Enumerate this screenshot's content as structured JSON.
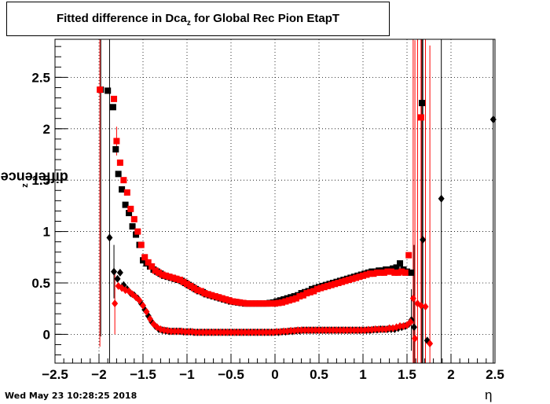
{
  "title": {
    "main": "Fitted difference in Dca",
    "sub": "z",
    "rest": " for Global Rec Pion EtapT"
  },
  "timestamp": "Wed May 23 10:28:25 2018",
  "chart_data": {
    "type": "scatter",
    "title": "Fitted difference in Dca_z for Global Rec Pion EtapT",
    "xlabel": "η",
    "ylabel_main": "difference in Dca",
    "ylabel_sub": "z",
    "xlim": [
      -2.5,
      2.5
    ],
    "ylim": [
      -0.28,
      2.87
    ],
    "xticks": [
      -2.5,
      -2,
      -1.5,
      -1,
      -0.5,
      0,
      0.5,
      1,
      1.5,
      2,
      2.5
    ],
    "xtick_labels": [
      "−2.5",
      "−2",
      "−1.5",
      "−1",
      "−0.5",
      "0",
      "0.5",
      "1",
      "1.5",
      "2",
      "2.5"
    ],
    "yticks": [
      0,
      0.5,
      1,
      1.5,
      2,
      2.5
    ],
    "ytick_labels": [
      "0",
      "0.5",
      "1",
      "1.5",
      "2",
      "2.5"
    ],
    "grid": true,
    "colors": {
      "black": "#000000",
      "red": "#ff0000"
    },
    "series": [
      {
        "marker": "square",
        "color": "#000000",
        "x": [
          -1.98,
          -1.9,
          -1.84,
          -1.81,
          -1.78,
          -1.74,
          -1.7,
          -1.66,
          -1.62,
          -1.58,
          -1.54,
          -1.5,
          -1.46,
          -1.42,
          -1.38,
          -1.34,
          -1.3,
          -1.26,
          -1.22,
          -1.18,
          -1.14,
          -1.1,
          -1.06,
          -1.02,
          -0.98,
          -0.94,
          -0.9,
          -0.86,
          -0.82,
          -0.78,
          -0.74,
          -0.7,
          -0.66,
          -0.62,
          -0.58,
          -0.54,
          -0.5,
          -0.46,
          -0.42,
          -0.38,
          -0.34,
          -0.3,
          -0.26,
          -0.22,
          -0.18,
          -0.14,
          -0.1,
          -0.06,
          -0.02,
          0.02,
          0.06,
          0.1,
          0.14,
          0.18,
          0.22,
          0.26,
          0.3,
          0.34,
          0.38,
          0.42,
          0.46,
          0.5,
          0.54,
          0.58,
          0.62,
          0.66,
          0.7,
          0.74,
          0.78,
          0.82,
          0.86,
          0.9,
          0.94,
          0.98,
          1.02,
          1.06,
          1.1,
          1.14,
          1.18,
          1.22,
          1.26,
          1.3,
          1.34,
          1.38,
          1.42,
          1.46,
          1.5,
          1.54,
          1.67
        ],
        "y": [
          2.38,
          2.37,
          2.21,
          1.8,
          1.56,
          1.41,
          1.26,
          1.18,
          1.05,
          0.97,
          0.87,
          0.72,
          0.69,
          0.66,
          0.63,
          0.61,
          0.59,
          0.57,
          0.56,
          0.55,
          0.54,
          0.53,
          0.52,
          0.5,
          0.48,
          0.46,
          0.44,
          0.42,
          0.41,
          0.39,
          0.38,
          0.37,
          0.36,
          0.35,
          0.34,
          0.33,
          0.32,
          0.315,
          0.31,
          0.305,
          0.3,
          0.3,
          0.3,
          0.3,
          0.3,
          0.3,
          0.3,
          0.305,
          0.31,
          0.32,
          0.33,
          0.34,
          0.35,
          0.36,
          0.37,
          0.38,
          0.4,
          0.41,
          0.42,
          0.44,
          0.45,
          0.46,
          0.47,
          0.48,
          0.49,
          0.5,
          0.51,
          0.52,
          0.53,
          0.54,
          0.55,
          0.56,
          0.57,
          0.58,
          0.59,
          0.6,
          0.61,
          0.61,
          0.62,
          0.62,
          0.63,
          0.63,
          0.64,
          0.65,
          0.69,
          0.63,
          0.61,
          0.6,
          2.25
        ],
        "err": [
          2.4,
          0,
          0,
          0,
          0,
          0,
          0,
          0,
          0,
          0,
          0,
          0,
          0,
          0,
          0,
          0,
          0,
          0,
          0,
          0,
          0,
          0,
          0,
          0,
          0,
          0,
          0,
          0,
          0,
          0,
          0,
          0,
          0,
          0,
          0,
          0,
          0,
          0,
          0,
          0,
          0,
          0,
          0,
          0,
          0,
          0,
          0,
          0,
          0,
          0,
          0,
          0,
          0,
          0,
          0,
          0,
          0,
          0,
          0,
          0,
          0,
          0,
          0,
          0,
          0,
          0,
          0,
          0,
          0,
          0,
          0,
          0,
          0,
          0,
          0,
          0,
          0,
          0,
          0,
          0,
          0,
          0,
          0,
          0,
          0,
          0,
          0,
          0,
          2.6
        ]
      },
      {
        "marker": "square",
        "color": "#ff0000",
        "x": [
          -1.99,
          -1.83,
          -1.8,
          -1.76,
          -1.72,
          -1.68,
          -1.64,
          -1.6,
          -1.56,
          -1.52,
          -1.48,
          -1.44,
          -1.4,
          -1.36,
          -1.32,
          -1.28,
          -1.24,
          -1.2,
          -1.16,
          -1.12,
          -1.08,
          -1.04,
          -1.0,
          -0.96,
          -0.92,
          -0.88,
          -0.84,
          -0.8,
          -0.76,
          -0.72,
          -0.68,
          -0.64,
          -0.6,
          -0.56,
          -0.52,
          -0.48,
          -0.44,
          -0.4,
          -0.36,
          -0.32,
          -0.28,
          -0.24,
          -0.2,
          -0.16,
          -0.12,
          -0.08,
          -0.04,
          0.0,
          0.04,
          0.08,
          0.12,
          0.16,
          0.2,
          0.24,
          0.28,
          0.32,
          0.36,
          0.4,
          0.44,
          0.48,
          0.52,
          0.56,
          0.6,
          0.64,
          0.68,
          0.72,
          0.76,
          0.8,
          0.84,
          0.88,
          0.92,
          0.96,
          1.0,
          1.04,
          1.08,
          1.12,
          1.16,
          1.2,
          1.24,
          1.28,
          1.32,
          1.36,
          1.4,
          1.44,
          1.48,
          1.52,
          1.66
        ],
        "y": [
          2.38,
          2.29,
          1.88,
          1.67,
          1.5,
          1.38,
          1.22,
          1.12,
          1.0,
          0.87,
          0.75,
          0.7,
          0.66,
          0.62,
          0.6,
          0.58,
          0.57,
          0.56,
          0.55,
          0.54,
          0.53,
          0.51,
          0.49,
          0.47,
          0.45,
          0.43,
          0.42,
          0.4,
          0.39,
          0.38,
          0.37,
          0.36,
          0.35,
          0.34,
          0.33,
          0.32,
          0.315,
          0.31,
          0.305,
          0.3,
          0.3,
          0.3,
          0.3,
          0.3,
          0.3,
          0.3,
          0.3,
          0.3,
          0.305,
          0.31,
          0.32,
          0.33,
          0.34,
          0.35,
          0.37,
          0.38,
          0.4,
          0.41,
          0.42,
          0.44,
          0.45,
          0.46,
          0.47,
          0.48,
          0.49,
          0.5,
          0.51,
          0.52,
          0.53,
          0.54,
          0.55,
          0.56,
          0.57,
          0.58,
          0.59,
          0.59,
          0.6,
          0.6,
          0.6,
          0.61,
          0.61,
          0.6,
          0.6,
          0.61,
          0.6,
          0.77,
          2.11
        ],
        "err": [
          2.5,
          0,
          0.14,
          0,
          0,
          0,
          0,
          0,
          0,
          0,
          0,
          0,
          0,
          0,
          0,
          0,
          0,
          0,
          0,
          0,
          0,
          0,
          0,
          0,
          0,
          0,
          0,
          0,
          0,
          0,
          0,
          0,
          0,
          0,
          0,
          0,
          0,
          0,
          0,
          0,
          0,
          0,
          0,
          0,
          0,
          0,
          0,
          0,
          0,
          0,
          0,
          0,
          0,
          0,
          0,
          0,
          0,
          0,
          0,
          0,
          0,
          0,
          0,
          0,
          0,
          0,
          0,
          0,
          0,
          0,
          0,
          0,
          0,
          0,
          0,
          0,
          0,
          0,
          0,
          0,
          0,
          0,
          0,
          0,
          0,
          0,
          2.4
        ]
      },
      {
        "marker": "diamond",
        "color": "#000000",
        "x": [
          -1.88,
          -1.83,
          -1.79,
          -1.76,
          -1.72,
          -1.68,
          -1.64,
          -1.6,
          -1.56,
          -1.52,
          -1.48,
          -1.44,
          -1.4,
          -1.36,
          -1.32,
          -1.28,
          -1.24,
          -1.2,
          -1.16,
          -1.12,
          -1.08,
          -1.04,
          -1.0,
          -0.96,
          -0.92,
          -0.88,
          -0.84,
          -0.8,
          -0.76,
          -0.72,
          -0.68,
          -0.64,
          -0.6,
          -0.56,
          -0.52,
          -0.48,
          -0.44,
          -0.4,
          -0.36,
          -0.32,
          -0.28,
          -0.24,
          -0.2,
          -0.16,
          -0.12,
          -0.08,
          -0.04,
          0.0,
          0.04,
          0.08,
          0.12,
          0.16,
          0.2,
          0.24,
          0.28,
          0.32,
          0.36,
          0.4,
          0.44,
          0.48,
          0.52,
          0.56,
          0.6,
          0.64,
          0.68,
          0.72,
          0.76,
          0.8,
          0.84,
          0.88,
          0.92,
          0.96,
          1.0,
          1.04,
          1.08,
          1.12,
          1.16,
          1.2,
          1.24,
          1.28,
          1.32,
          1.36,
          1.4,
          1.44,
          1.48,
          1.52,
          1.55,
          1.58,
          1.68,
          1.73,
          1.89,
          2.48
        ],
        "y": [
          0.94,
          0.61,
          0.54,
          0.6,
          0.48,
          0.44,
          0.4,
          0.38,
          0.35,
          0.3,
          0.24,
          0.18,
          0.12,
          0.08,
          0.05,
          0.04,
          0.035,
          0.03,
          0.03,
          0.03,
          0.03,
          0.025,
          0.025,
          0.025,
          0.02,
          0.02,
          0.02,
          0.02,
          0.02,
          0.02,
          0.02,
          0.02,
          0.02,
          0.02,
          0.02,
          0.02,
          0.02,
          0.02,
          0.02,
          0.02,
          0.02,
          0.02,
          0.02,
          0.02,
          0.02,
          0.02,
          0.02,
          0.02,
          0.02,
          0.025,
          0.025,
          0.03,
          0.03,
          0.035,
          0.035,
          0.04,
          0.04,
          0.04,
          0.04,
          0.04,
          0.04,
          0.04,
          0.04,
          0.04,
          0.04,
          0.04,
          0.04,
          0.04,
          0.04,
          0.04,
          0.04,
          0.04,
          0.04,
          0.04,
          0.04,
          0.045,
          0.045,
          0.05,
          0.05,
          0.05,
          0.05,
          0.05,
          0.06,
          0.07,
          0.08,
          0.1,
          0.14,
          0.07,
          0.92,
          -0.06,
          1.32,
          2.09
        ],
        "err": [
          2.9,
          0.26,
          0,
          0,
          0,
          0,
          0,
          0,
          0,
          0,
          0,
          0,
          0,
          0,
          0,
          0,
          0,
          0,
          0,
          0,
          0,
          0,
          0,
          0,
          0,
          0,
          0,
          0,
          0,
          0,
          0,
          0,
          0,
          0,
          0,
          0,
          0,
          0,
          0,
          0,
          0,
          0,
          0,
          0,
          0,
          0,
          0,
          0,
          0,
          0,
          0,
          0,
          0,
          0,
          0,
          0,
          0,
          0,
          0,
          0,
          0,
          0,
          0,
          0,
          0,
          0,
          0,
          0,
          0,
          0,
          0,
          0,
          0,
          0,
          0,
          0,
          0,
          0,
          0,
          0,
          0,
          0,
          0,
          0,
          0,
          0,
          0.3,
          0.8,
          2.9,
          0,
          2.9,
          2.9
        ]
      },
      {
        "marker": "diamond",
        "color": "#ff0000",
        "x": [
          -1.82,
          -1.78,
          -1.74,
          -1.7,
          -1.66,
          -1.62,
          -1.58,
          -1.54,
          -1.5,
          -1.46,
          -1.42,
          -1.38,
          -1.34,
          -1.3,
          -1.26,
          -1.22,
          -1.18,
          -1.14,
          -1.1,
          -1.06,
          -1.02,
          -0.98,
          -0.94,
          -0.9,
          -0.86,
          -0.82,
          -0.78,
          -0.74,
          -0.7,
          -0.66,
          -0.62,
          -0.58,
          -0.54,
          -0.5,
          -0.46,
          -0.42,
          -0.38,
          -0.34,
          -0.3,
          -0.26,
          -0.22,
          -0.18,
          -0.14,
          -0.1,
          -0.06,
          -0.02,
          0.02,
          0.06,
          0.1,
          0.14,
          0.18,
          0.22,
          0.26,
          0.3,
          0.34,
          0.38,
          0.42,
          0.46,
          0.5,
          0.54,
          0.58,
          0.62,
          0.66,
          0.7,
          0.74,
          0.78,
          0.82,
          0.86,
          0.9,
          0.94,
          0.98,
          1.02,
          1.06,
          1.1,
          1.14,
          1.18,
          1.22,
          1.26,
          1.3,
          1.34,
          1.38,
          1.42,
          1.46,
          1.5,
          1.54,
          1.57,
          1.59,
          1.62,
          1.66,
          1.71,
          1.76
        ],
        "y": [
          0.3,
          0.47,
          0.45,
          0.43,
          0.42,
          0.39,
          0.36,
          0.33,
          0.28,
          0.22,
          0.15,
          0.1,
          0.07,
          0.05,
          0.04,
          0.035,
          0.03,
          0.03,
          0.03,
          0.03,
          0.025,
          0.025,
          0.025,
          0.02,
          0.02,
          0.02,
          0.02,
          0.02,
          0.02,
          0.02,
          0.02,
          0.02,
          0.02,
          0.02,
          0.02,
          0.02,
          0.02,
          0.02,
          0.02,
          0.02,
          0.02,
          0.02,
          0.02,
          0.02,
          0.02,
          0.02,
          0.025,
          0.025,
          0.03,
          0.03,
          0.035,
          0.035,
          0.04,
          0.04,
          0.04,
          0.04,
          0.04,
          0.04,
          0.04,
          0.04,
          0.04,
          0.04,
          0.04,
          0.04,
          0.04,
          0.04,
          0.04,
          0.04,
          0.04,
          0.04,
          0.04,
          0.04,
          0.045,
          0.045,
          0.05,
          0.05,
          0.05,
          0.05,
          0.06,
          0.06,
          0.07,
          0.08,
          0.08,
          0.09,
          0.12,
          0.35,
          -0.04,
          0.3,
          0.28,
          0.27,
          -0.09
        ],
        "err": [
          0.3,
          0,
          0,
          0,
          0,
          0,
          0,
          0,
          0,
          0,
          0,
          0,
          0,
          0,
          0,
          0,
          0,
          0,
          0,
          0,
          0,
          0,
          0,
          0,
          0,
          0,
          0,
          0,
          0,
          0,
          0,
          0,
          0,
          0,
          0,
          0,
          0,
          0,
          0,
          0,
          0,
          0,
          0,
          0,
          0,
          0,
          0,
          0,
          0,
          0,
          0,
          0,
          0,
          0,
          0,
          0,
          0,
          0,
          0,
          0,
          0,
          0,
          0,
          0,
          0,
          0,
          0,
          0,
          0,
          0,
          0,
          0,
          0,
          0,
          0,
          0,
          0,
          0,
          0,
          0,
          0,
          0,
          0,
          0,
          0,
          2.9,
          2.9,
          2.9,
          2.9,
          2.9,
          2.9
        ]
      }
    ]
  }
}
